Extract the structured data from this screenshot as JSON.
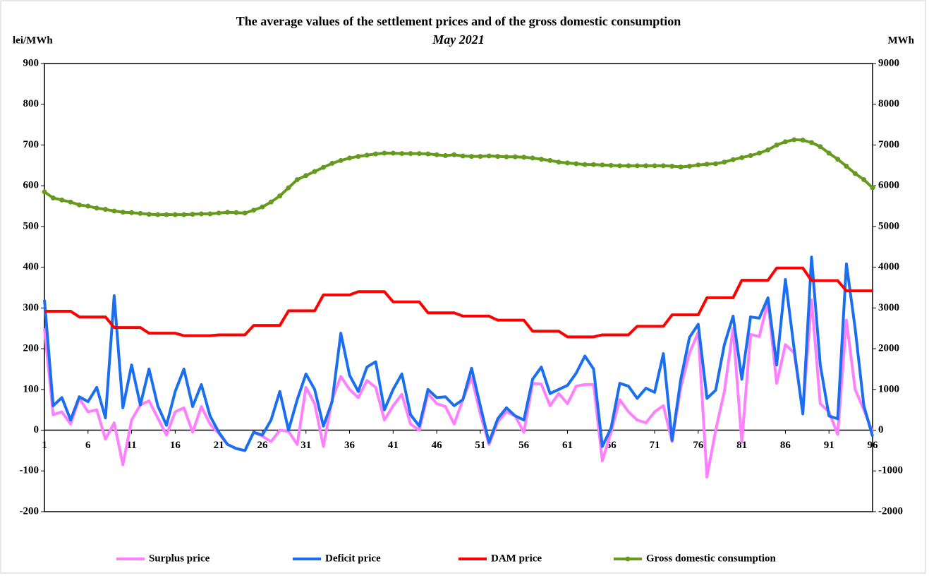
{
  "chart_data": {
    "type": "line",
    "title": "The average values of the settlement prices and of the gross domestic consumption",
    "subtitle": "May 2021",
    "y_label": "lei/MWh",
    "y2_label": "MWh",
    "x": [
      1,
      2,
      3,
      4,
      5,
      6,
      7,
      8,
      9,
      10,
      11,
      12,
      13,
      14,
      15,
      16,
      17,
      18,
      19,
      20,
      21,
      22,
      23,
      24,
      25,
      26,
      27,
      28,
      29,
      30,
      31,
      32,
      33,
      34,
      35,
      36,
      37,
      38,
      39,
      40,
      41,
      42,
      43,
      44,
      45,
      46,
      47,
      48,
      49,
      50,
      51,
      52,
      53,
      54,
      55,
      56,
      57,
      58,
      59,
      60,
      61,
      62,
      63,
      64,
      65,
      66,
      67,
      68,
      69,
      70,
      71,
      72,
      73,
      74,
      75,
      76,
      77,
      78,
      79,
      80,
      81,
      82,
      83,
      84,
      85,
      86,
      87,
      88,
      89,
      90,
      91,
      92,
      93,
      94,
      95,
      96
    ],
    "xlim": [
      1,
      96
    ],
    "xticks": [
      1,
      6,
      11,
      16,
      21,
      26,
      31,
      36,
      41,
      46,
      51,
      56,
      61,
      66,
      71,
      76,
      81,
      86,
      91,
      96
    ],
    "ylim": [
      -200,
      900
    ],
    "yticks": [
      -200,
      -100,
      0,
      100,
      200,
      300,
      400,
      500,
      600,
      700,
      800,
      900
    ],
    "y2lim": [
      -2000,
      9000
    ],
    "y2ticks": [
      -2000,
      -1000,
      0,
      1000,
      2000,
      3000,
      4000,
      5000,
      6000,
      7000,
      8000,
      9000
    ],
    "legend": "bottom",
    "series": [
      {
        "name": "Surplus price",
        "color": "#ff80ff",
        "values": [
          250,
          38,
          45,
          15,
          78,
          45,
          50,
          -22,
          18,
          -85,
          25,
          62,
          72,
          30,
          -12,
          45,
          55,
          -5,
          58,
          15,
          -8,
          -35,
          -45,
          -50,
          -5,
          -15,
          -28,
          0,
          -3,
          -35,
          105,
          65,
          -40,
          75,
          132,
          100,
          80,
          122,
          105,
          25,
          60,
          88,
          15,
          0,
          90,
          65,
          58,
          15,
          75,
          130,
          40,
          -35,
          20,
          45,
          35,
          -5,
          115,
          113,
          60,
          90,
          65,
          108,
          112,
          112,
          -75,
          -5,
          75,
          45,
          25,
          18,
          45,
          60,
          -28,
          105,
          190,
          240,
          -115,
          0,
          95,
          250,
          -30,
          235,
          230,
          315,
          115,
          210,
          190,
          45,
          320,
          65,
          45,
          -10,
          270,
          100,
          50,
          -5
        ]
      },
      {
        "name": "Deficit price",
        "color": "#1a6ef0",
        "values": [
          320,
          60,
          80,
          25,
          82,
          70,
          105,
          30,
          330,
          55,
          160,
          62,
          150,
          60,
          12,
          95,
          150,
          58,
          112,
          35,
          -5,
          -35,
          -45,
          -50,
          -5,
          -12,
          25,
          95,
          0,
          75,
          138,
          100,
          10,
          70,
          238,
          135,
          95,
          155,
          168,
          50,
          100,
          138,
          38,
          10,
          100,
          80,
          82,
          60,
          75,
          152,
          60,
          -30,
          28,
          55,
          35,
          25,
          125,
          155,
          90,
          100,
          110,
          140,
          182,
          150,
          -40,
          5,
          115,
          108,
          78,
          103,
          93,
          188,
          -25,
          125,
          228,
          260,
          78,
          98,
          210,
          280,
          125,
          278,
          275,
          325,
          160,
          370,
          200,
          40,
          425,
          160,
          35,
          28,
          408,
          250,
          60,
          -15
        ]
      },
      {
        "name": "DAM price",
        "color": "#ff0000",
        "values": [
          292,
          292,
          292,
          292,
          278,
          278,
          278,
          278,
          252,
          252,
          252,
          252,
          238,
          238,
          238,
          238,
          232,
          232,
          232,
          232,
          234,
          234,
          234,
          234,
          257,
          257,
          257,
          257,
          293,
          293,
          293,
          293,
          332,
          332,
          332,
          332,
          340,
          340,
          340,
          340,
          315,
          315,
          315,
          315,
          288,
          288,
          288,
          288,
          280,
          280,
          280,
          280,
          270,
          270,
          270,
          270,
          243,
          243,
          243,
          243,
          229,
          229,
          229,
          229,
          234,
          234,
          234,
          234,
          255,
          255,
          255,
          255,
          283,
          283,
          283,
          283,
          325,
          325,
          325,
          325,
          368,
          368,
          368,
          368,
          398,
          398,
          398,
          398,
          367,
          367,
          367,
          367,
          342,
          342,
          342,
          342
        ]
      },
      {
        "name": "Gross domestic consumption",
        "color": "#669a1e",
        "axis": "y2",
        "markers": true,
        "values": [
          5850,
          5700,
          5650,
          5600,
          5530,
          5500,
          5450,
          5420,
          5380,
          5350,
          5340,
          5320,
          5300,
          5290,
          5290,
          5290,
          5290,
          5300,
          5310,
          5310,
          5330,
          5350,
          5340,
          5330,
          5400,
          5480,
          5600,
          5750,
          5950,
          6150,
          6250,
          6350,
          6450,
          6550,
          6620,
          6680,
          6720,
          6750,
          6780,
          6800,
          6800,
          6790,
          6790,
          6790,
          6780,
          6760,
          6740,
          6760,
          6730,
          6720,
          6720,
          6730,
          6720,
          6710,
          6710,
          6700,
          6680,
          6650,
          6620,
          6580,
          6560,
          6540,
          6520,
          6520,
          6510,
          6500,
          6490,
          6490,
          6490,
          6490,
          6490,
          6490,
          6480,
          6460,
          6480,
          6510,
          6530,
          6540,
          6580,
          6640,
          6690,
          6740,
          6800,
          6880,
          7000,
          7080,
          7130,
          7120,
          7060,
          6960,
          6800,
          6650,
          6480,
          6300,
          6150,
          5950
        ]
      }
    ]
  }
}
